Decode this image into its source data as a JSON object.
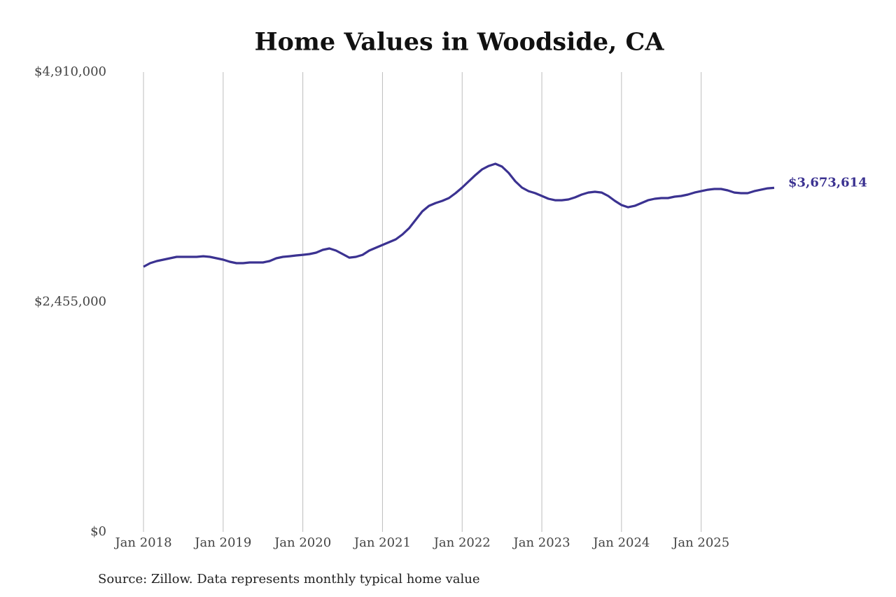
{
  "chart_data": {
    "type": "line",
    "title": "Home Values in Woodside, CA",
    "source": "Source: Zillow. Data represents monthly typical home value",
    "x": [
      "2018-01",
      "2018-02",
      "2018-03",
      "2018-04",
      "2018-05",
      "2018-06",
      "2018-07",
      "2018-08",
      "2018-09",
      "2018-10",
      "2018-11",
      "2018-12",
      "2019-01",
      "2019-02",
      "2019-03",
      "2019-04",
      "2019-05",
      "2019-06",
      "2019-07",
      "2019-08",
      "2019-09",
      "2019-10",
      "2019-11",
      "2019-12",
      "2020-01",
      "2020-02",
      "2020-03",
      "2020-04",
      "2020-05",
      "2020-06",
      "2020-07",
      "2020-08",
      "2020-09",
      "2020-10",
      "2020-11",
      "2020-12",
      "2021-01",
      "2021-02",
      "2021-03",
      "2021-04",
      "2021-05",
      "2021-06",
      "2021-07",
      "2021-08",
      "2021-09",
      "2021-10",
      "2021-11",
      "2021-12",
      "2022-01",
      "2022-02",
      "2022-03",
      "2022-04",
      "2022-05",
      "2022-06",
      "2022-07",
      "2022-08",
      "2022-09",
      "2022-10",
      "2022-11",
      "2022-12",
      "2023-01",
      "2023-02",
      "2023-03",
      "2023-04",
      "2023-05",
      "2023-06",
      "2023-07",
      "2023-08",
      "2023-09",
      "2023-10",
      "2023-11",
      "2023-12",
      "2024-01",
      "2024-02",
      "2024-03",
      "2024-04",
      "2024-05",
      "2024-06",
      "2024-07",
      "2024-08",
      "2024-09",
      "2024-10",
      "2024-11",
      "2024-12",
      "2025-01",
      "2025-02",
      "2025-03",
      "2025-04",
      "2025-05",
      "2025-06",
      "2025-07",
      "2025-08",
      "2025-09",
      "2025-10",
      "2025-11",
      "2025-12"
    ],
    "series": [
      {
        "name": "Woodside, CA",
        "color": "#3b3291",
        "values": [
          2832000,
          2870000,
          2892000,
          2907000,
          2922000,
          2937000,
          2937000,
          2937000,
          2937000,
          2944000,
          2937000,
          2922000,
          2907000,
          2885000,
          2870000,
          2870000,
          2877000,
          2877000,
          2877000,
          2892000,
          2922000,
          2937000,
          2944000,
          2952000,
          2959000,
          2967000,
          2982000,
          3012000,
          3027000,
          3004000,
          2967000,
          2929000,
          2937000,
          2959000,
          3004000,
          3034000,
          3064000,
          3094000,
          3124000,
          3176000,
          3243000,
          3333000,
          3423000,
          3482000,
          3512000,
          3535000,
          3565000,
          3617000,
          3677000,
          3744000,
          3811000,
          3871000,
          3908000,
          3931000,
          3901000,
          3834000,
          3744000,
          3677000,
          3639000,
          3617000,
          3587000,
          3557000,
          3542000,
          3542000,
          3550000,
          3572000,
          3602000,
          3624000,
          3632000,
          3624000,
          3587000,
          3535000,
          3490000,
          3467000,
          3482000,
          3512000,
          3542000,
          3557000,
          3565000,
          3565000,
          3580000,
          3587000,
          3602000,
          3624000,
          3639000,
          3654000,
          3662000,
          3662000,
          3647000,
          3624000,
          3617000,
          3617000,
          3639000,
          3654000,
          3669000,
          3673614
        ],
        "value_labels": [
          null,
          null,
          null,
          null,
          null,
          null,
          null,
          null,
          null,
          null,
          null,
          null,
          null,
          null,
          null,
          null,
          null,
          null,
          null,
          null,
          null,
          null,
          null,
          null,
          null,
          null,
          null,
          null,
          null,
          null,
          null,
          null,
          null,
          null,
          null,
          null,
          null,
          null,
          null,
          null,
          null,
          null,
          null,
          null,
          null,
          null,
          null,
          null,
          null,
          null,
          null,
          null,
          null,
          null,
          null,
          null,
          null,
          null,
          null,
          null,
          null,
          null,
          null,
          null,
          null,
          null,
          null,
          null,
          null,
          null,
          null,
          null,
          null,
          null,
          null,
          null,
          null,
          null,
          null,
          null,
          null,
          null,
          null,
          null,
          null,
          null,
          null,
          null,
          null,
          null,
          null,
          null,
          null,
          null,
          null,
          "$3,673,614"
        ]
      }
    ],
    "xlim": [
      "2018-01",
      "2025-12"
    ],
    "xticks": [
      {
        "value": "2018-01",
        "label": "Jan 2018"
      },
      {
        "value": "2019-01",
        "label": "Jan 2019"
      },
      {
        "value": "2020-01",
        "label": "Jan 2020"
      },
      {
        "value": "2021-01",
        "label": "Jan 2021"
      },
      {
        "value": "2022-01",
        "label": "Jan 2022"
      },
      {
        "value": "2023-01",
        "label": "Jan 2023"
      },
      {
        "value": "2024-01",
        "label": "Jan 2024"
      },
      {
        "value": "2025-01",
        "label": "Jan 2025"
      }
    ],
    "ylim": [
      0,
      4910000
    ],
    "yticks": [
      {
        "value": 0,
        "label": "$0"
      },
      {
        "value": 2455000,
        "label": "$2,455,000"
      },
      {
        "value": 4910000,
        "label": "$4,910,000"
      }
    ],
    "grid": "x"
  }
}
